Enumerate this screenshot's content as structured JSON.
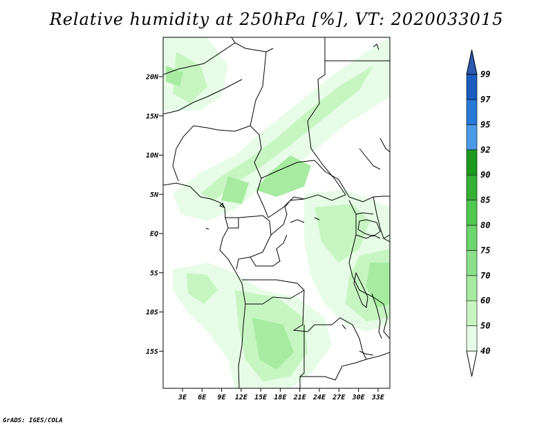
{
  "title": "Relative humidity at 250hPa [%], VT: 2020033015",
  "credit": "GrADS: IGES/COLA",
  "lat_labels": [
    "20N",
    "15N",
    "10N",
    "5N",
    "EQ",
    "5S",
    "10S",
    "15S"
  ],
  "lat_values": [
    20,
    15,
    10,
    5,
    0,
    -5,
    -10,
    -15
  ],
  "lon_labels": [
    "3E",
    "6E",
    "9E",
    "12E",
    "15E",
    "18E",
    "21E",
    "24E",
    "27E",
    "30E",
    "33E"
  ],
  "lon_values": [
    3,
    6,
    9,
    12,
    15,
    18,
    21,
    24,
    27,
    30,
    33
  ],
  "colorbar": {
    "levels": [
      "40",
      "50",
      "60",
      "70",
      "75",
      "80",
      "85",
      "90",
      "92",
      "95",
      "97",
      "99"
    ],
    "colors": [
      "#ffffff",
      "#e6fce6",
      "#c7f5c2",
      "#a6eba0",
      "#8ae08a",
      "#6ed66e",
      "#50c850",
      "#35b035",
      "#1c9a1c",
      "#4a9ae8",
      "#2878d8",
      "#1c5cc0",
      "#2c5ab0"
    ]
  }
}
